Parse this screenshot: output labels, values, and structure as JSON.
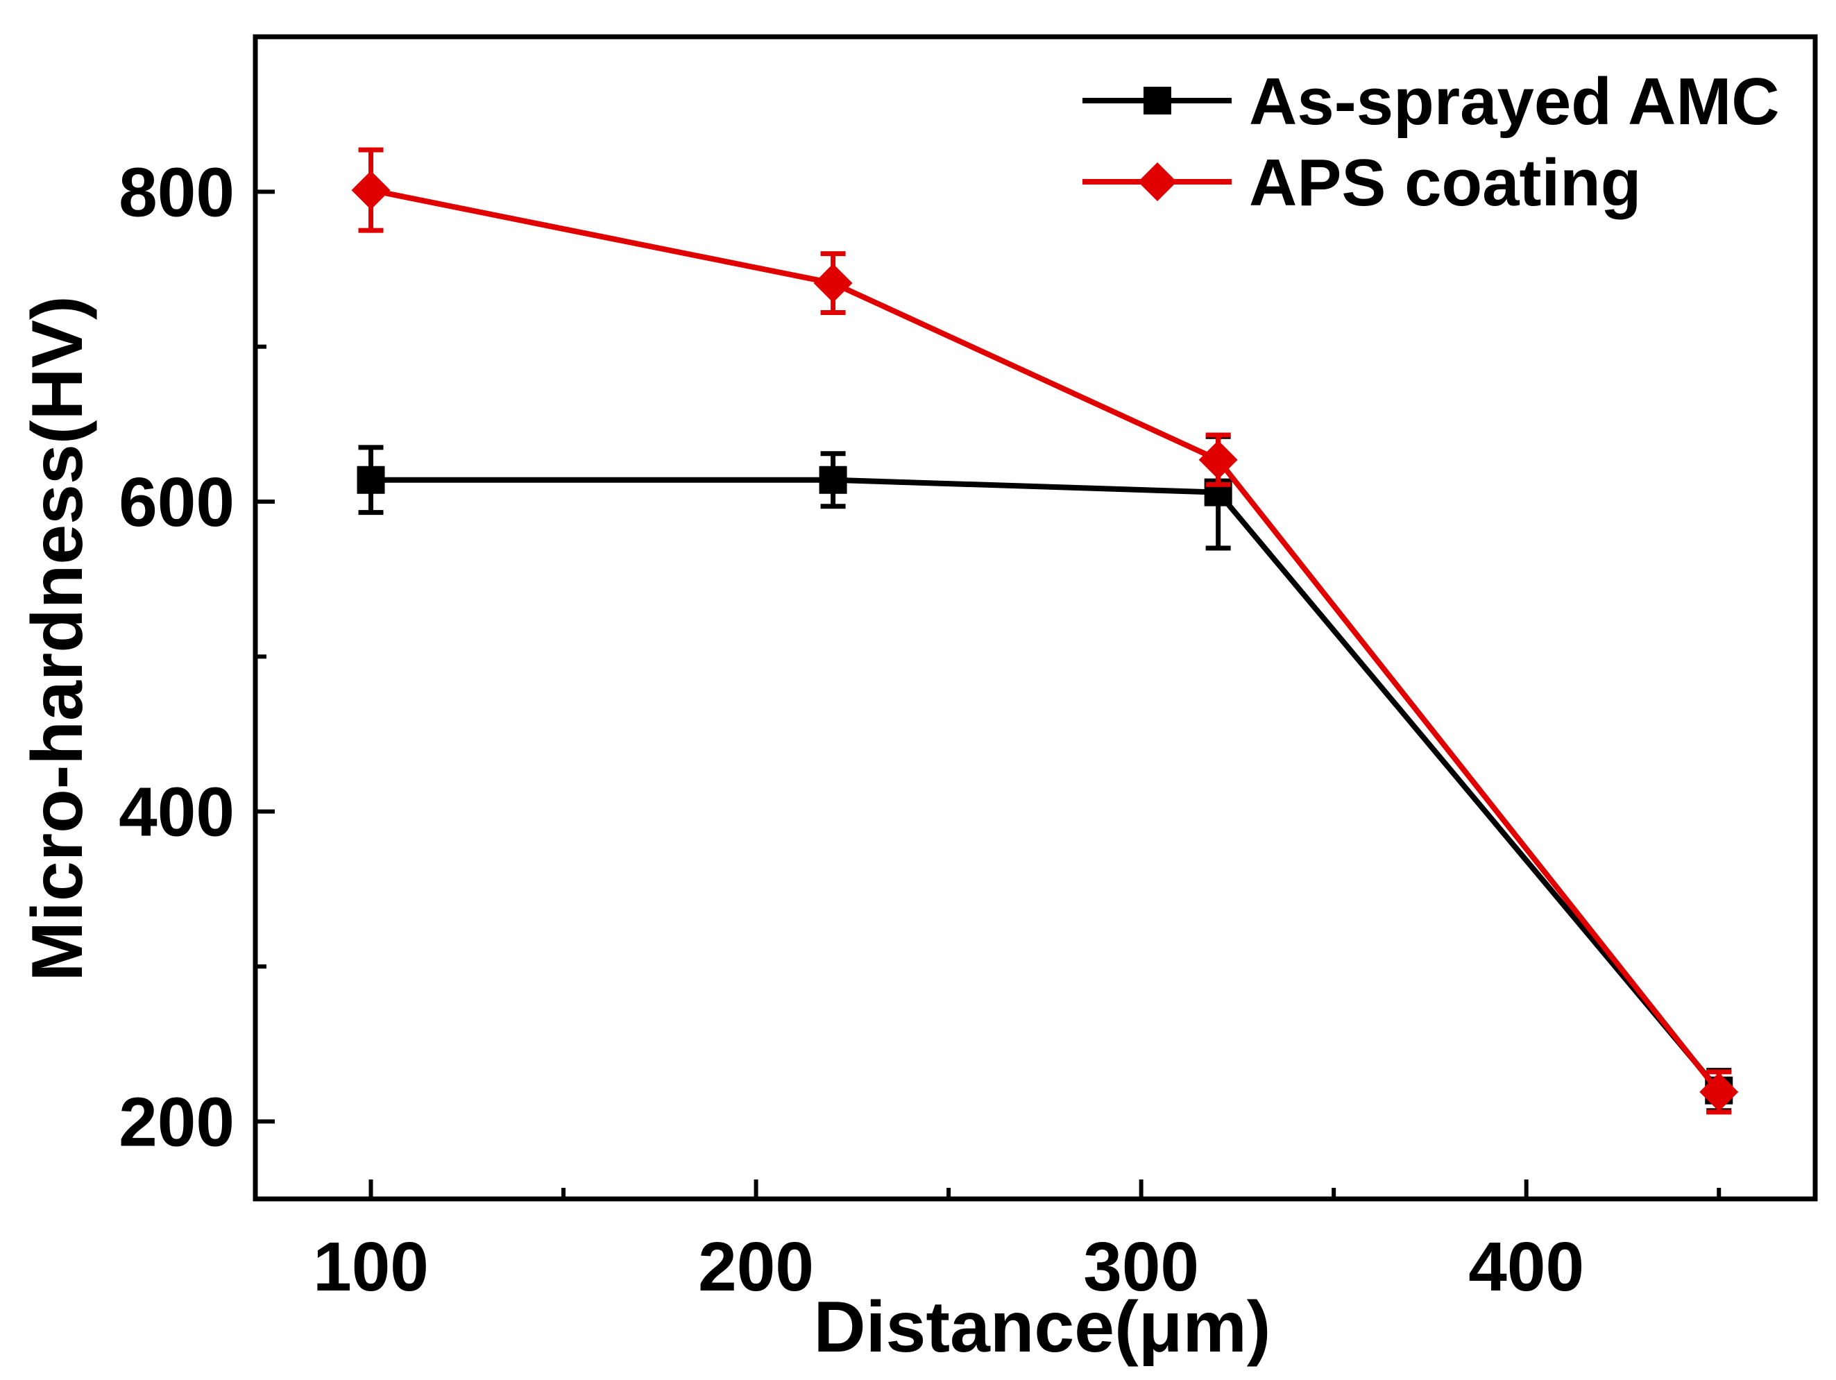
{
  "chart_data": {
    "type": "line",
    "title": "",
    "xlabel": "Distance(μm)",
    "ylabel": "Micro-hardness(HV)",
    "xlim": [
      70,
      475
    ],
    "ylim": [
      150,
      900
    ],
    "xticks": [
      100,
      200,
      300,
      400
    ],
    "xtick_labels": [
      "100",
      "200",
      "300",
      "400"
    ],
    "x_minor_ticks": [
      150,
      250,
      350,
      450
    ],
    "yticks": [
      200,
      400,
      600,
      800
    ],
    "ytick_labels": [
      "200",
      "400",
      "600",
      "800"
    ],
    "y_minor_ticks": [
      300,
      500,
      700
    ],
    "grid": false,
    "legend_position": "top-right",
    "series": [
      {
        "name": "As-sprayed AMC",
        "color": "#000000",
        "marker": "square",
        "x": [
          100,
          220,
          320,
          450
        ],
        "y": [
          614,
          614,
          606,
          220
        ],
        "yerr": [
          21,
          17,
          36,
          13
        ]
      },
      {
        "name": "APS coating",
        "color": "#e00000",
        "marker": "diamond",
        "x": [
          100,
          220,
          320,
          450
        ],
        "y": [
          801,
          741,
          627,
          219
        ],
        "yerr": [
          26,
          19,
          16,
          13
        ]
      }
    ]
  }
}
